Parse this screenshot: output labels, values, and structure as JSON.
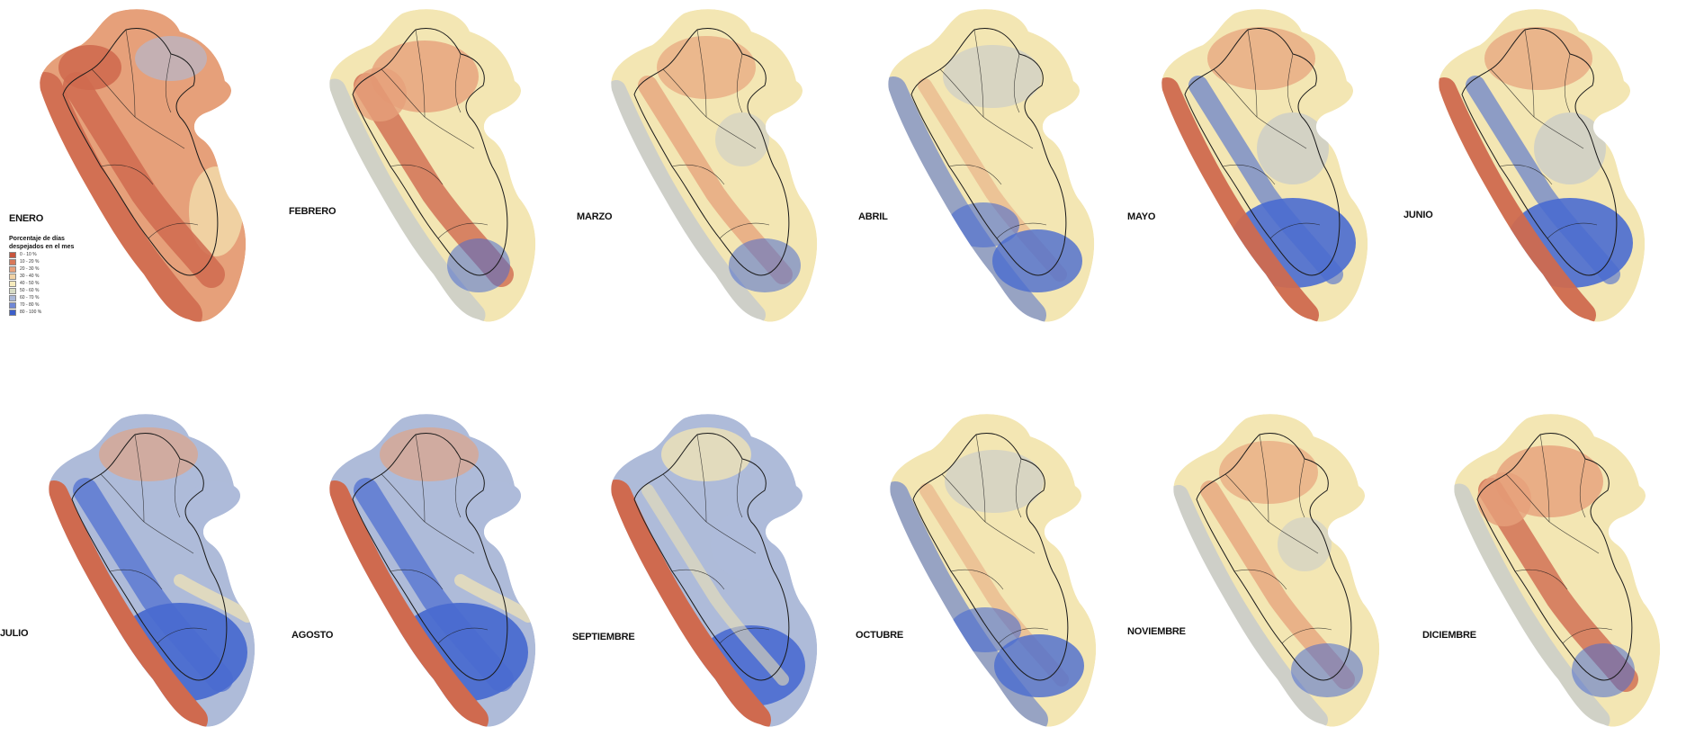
{
  "months": [
    {
      "label": "ENERO",
      "key": "enero",
      "scheme": "red-dominant"
    },
    {
      "label": "FEBRERO",
      "key": "febrero",
      "scheme": "red-yellow"
    },
    {
      "label": "MARZO",
      "key": "marzo",
      "scheme": "yellow-mixed"
    },
    {
      "label": "ABRIL",
      "key": "abril",
      "scheme": "yellow-blue-south"
    },
    {
      "label": "MAYO",
      "key": "mayo",
      "scheme": "blue-south-red-coast"
    },
    {
      "label": "JUNIO",
      "key": "junio",
      "scheme": "blue-south-red-coast"
    },
    {
      "label": "JULIO",
      "key": "julio",
      "scheme": "blue-dominant"
    },
    {
      "label": "AGOSTO",
      "key": "agosto",
      "scheme": "blue-dominant"
    },
    {
      "label": "SEPTIEMBRE",
      "key": "septiembre",
      "scheme": "blue-mixed"
    },
    {
      "label": "OCTUBRE",
      "key": "octubre",
      "scheme": "yellow-blue-south"
    },
    {
      "label": "NOVIEMBRE",
      "key": "noviembre",
      "scheme": "yellow-mixed"
    },
    {
      "label": "DICIEMBRE",
      "key": "diciembre",
      "scheme": "red-yellow"
    }
  ],
  "legend": {
    "title_line1": "Porcentaje de días",
    "title_line2": "despejados en el mes",
    "items": [
      {
        "label": "0 - 10 %",
        "color": "#c8553d"
      },
      {
        "label": "10 - 20 %",
        "color": "#d8785a"
      },
      {
        "label": "20 - 30 %",
        "color": "#e7a17d"
      },
      {
        "label": "30 - 40 %",
        "color": "#f1d3a6"
      },
      {
        "label": "40 - 50 %",
        "color": "#f6ebbd"
      },
      {
        "label": "50 - 60 %",
        "color": "#d7dcc5"
      },
      {
        "label": "60 - 70 %",
        "color": "#aab8d8"
      },
      {
        "label": "70 - 80 %",
        "color": "#6f87d6"
      },
      {
        "label": "80 - 100 %",
        "color": "#3c5fcb"
      }
    ]
  },
  "palette": {
    "red": "#cf6a4f",
    "orange": "#e6a07a",
    "yellow": "#f3e6b3",
    "lightblue": "#aebbd9",
    "blue": "#4a6bd0",
    "boundary": "#1a1a1a"
  }
}
